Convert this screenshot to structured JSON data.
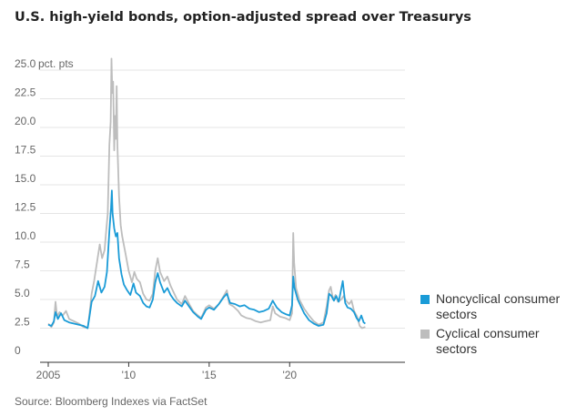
{
  "title": "U.S. high-yield bonds, option-adjusted spread over Treasurys",
  "source": "Source: Bloomberg Indexes via FactSet",
  "colors": {
    "noncyclical": "#1a9bd7",
    "cyclical": "#bdbdbd",
    "grid": "#e5e5e5",
    "axis": "#333333"
  },
  "chart_data": {
    "type": "line",
    "title": "U.S. high-yield bonds, option-adjusted spread over Treasurys",
    "unit_label": "pct. pts",
    "ylim": [
      0,
      25
    ],
    "xlim": [
      2005.0,
      2024.8
    ],
    "y_ticks": [
      {
        "value": 0,
        "label": "0"
      },
      {
        "value": 2.5,
        "label": "2.5"
      },
      {
        "value": 5,
        "label": "5.0"
      },
      {
        "value": 7.5,
        "label": "7.5"
      },
      {
        "value": 10,
        "label": "10.0"
      },
      {
        "value": 12.5,
        "label": "12.5"
      },
      {
        "value": 15,
        "label": "15.0"
      },
      {
        "value": 17.5,
        "label": "17.5"
      },
      {
        "value": 20,
        "label": "20.0"
      },
      {
        "value": 22.5,
        "label": "22.5"
      },
      {
        "value": 25,
        "label": "25.0"
      }
    ],
    "x_ticks": [
      {
        "value": 2005,
        "label": "2005"
      },
      {
        "value": 2010,
        "label": "'10"
      },
      {
        "value": 2015,
        "label": "'15"
      },
      {
        "value": 2020,
        "label": "'20"
      }
    ],
    "series": [
      {
        "name": "Cyclical consumer sectors",
        "legend_label": "Cyclical consumer sectors",
        "color": "#bdbdbd",
        "points": [
          [
            2005.0,
            2.9
          ],
          [
            2005.2,
            2.6
          ],
          [
            2005.35,
            3.0
          ],
          [
            2005.45,
            4.8
          ],
          [
            2005.55,
            3.5
          ],
          [
            2005.7,
            3.9
          ],
          [
            2005.9,
            3.6
          ],
          [
            2006.1,
            4.0
          ],
          [
            2006.3,
            3.3
          ],
          [
            2006.6,
            3.1
          ],
          [
            2006.9,
            2.9
          ],
          [
            2007.2,
            2.6
          ],
          [
            2007.45,
            2.5
          ],
          [
            2007.55,
            3.6
          ],
          [
            2007.7,
            5.5
          ],
          [
            2007.85,
            6.6
          ],
          [
            2008.0,
            8.0
          ],
          [
            2008.2,
            9.8
          ],
          [
            2008.35,
            8.6
          ],
          [
            2008.5,
            9.3
          ],
          [
            2008.6,
            11.0
          ],
          [
            2008.7,
            12.5
          ],
          [
            2008.8,
            18.5
          ],
          [
            2008.88,
            20.5
          ],
          [
            2008.93,
            26.0
          ],
          [
            2008.98,
            23.0
          ],
          [
            2009.03,
            24.0
          ],
          [
            2009.1,
            18.0
          ],
          [
            2009.15,
            21.0
          ],
          [
            2009.2,
            19.0
          ],
          [
            2009.25,
            23.6
          ],
          [
            2009.3,
            18.5
          ],
          [
            2009.4,
            14.0
          ],
          [
            2009.5,
            11.5
          ],
          [
            2009.6,
            10.5
          ],
          [
            2009.8,
            9.0
          ],
          [
            2010.0,
            7.5
          ],
          [
            2010.2,
            6.5
          ],
          [
            2010.35,
            7.4
          ],
          [
            2010.5,
            6.8
          ],
          [
            2010.7,
            6.5
          ],
          [
            2010.9,
            5.5
          ],
          [
            2011.1,
            5.0
          ],
          [
            2011.3,
            4.9
          ],
          [
            2011.5,
            5.5
          ],
          [
            2011.65,
            7.5
          ],
          [
            2011.8,
            8.6
          ],
          [
            2011.95,
            7.4
          ],
          [
            2012.2,
            6.6
          ],
          [
            2012.4,
            7.0
          ],
          [
            2012.6,
            6.2
          ],
          [
            2012.8,
            5.6
          ],
          [
            2013.0,
            5.0
          ],
          [
            2013.3,
            4.6
          ],
          [
            2013.5,
            5.3
          ],
          [
            2013.8,
            4.5
          ],
          [
            2014.0,
            4.0
          ],
          [
            2014.3,
            3.6
          ],
          [
            2014.5,
            3.4
          ],
          [
            2014.8,
            4.3
          ],
          [
            2015.0,
            4.5
          ],
          [
            2015.3,
            4.2
          ],
          [
            2015.6,
            4.6
          ],
          [
            2015.9,
            5.3
          ],
          [
            2016.1,
            5.8
          ],
          [
            2016.25,
            4.6
          ],
          [
            2016.5,
            4.4
          ],
          [
            2016.8,
            4.0
          ],
          [
            2017.0,
            3.6
          ],
          [
            2017.3,
            3.4
          ],
          [
            2017.6,
            3.3
          ],
          [
            2017.9,
            3.1
          ],
          [
            2018.2,
            3.0
          ],
          [
            2018.5,
            3.1
          ],
          [
            2018.8,
            3.2
          ],
          [
            2018.95,
            4.4
          ],
          [
            2019.1,
            3.8
          ],
          [
            2019.4,
            3.5
          ],
          [
            2019.7,
            3.4
          ],
          [
            2020.0,
            3.2
          ],
          [
            2020.15,
            3.8
          ],
          [
            2020.22,
            10.8
          ],
          [
            2020.28,
            8.2
          ],
          [
            2020.4,
            6.0
          ],
          [
            2020.6,
            5.0
          ],
          [
            2020.9,
            4.2
          ],
          [
            2021.2,
            3.6
          ],
          [
            2021.5,
            3.1
          ],
          [
            2021.8,
            2.8
          ],
          [
            2022.1,
            3.0
          ],
          [
            2022.3,
            4.4
          ],
          [
            2022.45,
            5.8
          ],
          [
            2022.55,
            6.1
          ],
          [
            2022.7,
            5.0
          ],
          [
            2022.85,
            5.4
          ],
          [
            2023.0,
            4.8
          ],
          [
            2023.2,
            5.0
          ],
          [
            2023.35,
            5.3
          ],
          [
            2023.5,
            4.9
          ],
          [
            2023.7,
            4.6
          ],
          [
            2023.85,
            4.9
          ],
          [
            2024.0,
            4.0
          ],
          [
            2024.2,
            3.5
          ],
          [
            2024.35,
            2.7
          ],
          [
            2024.5,
            2.5
          ],
          [
            2024.7,
            2.6
          ]
        ]
      },
      {
        "name": "Noncyclical consumer sectors",
        "legend_label": "Noncyclical consumer sectors",
        "color": "#1a9bd7",
        "points": [
          [
            2005.0,
            2.8
          ],
          [
            2005.2,
            2.7
          ],
          [
            2005.35,
            3.1
          ],
          [
            2005.45,
            3.9
          ],
          [
            2005.6,
            3.3
          ],
          [
            2005.8,
            3.8
          ],
          [
            2006.0,
            3.2
          ],
          [
            2006.3,
            3.0
          ],
          [
            2006.6,
            2.9
          ],
          [
            2006.9,
            2.8
          ],
          [
            2007.2,
            2.7
          ],
          [
            2007.45,
            2.5
          ],
          [
            2007.55,
            3.4
          ],
          [
            2007.7,
            4.8
          ],
          [
            2007.9,
            5.3
          ],
          [
            2008.1,
            6.6
          ],
          [
            2008.3,
            5.6
          ],
          [
            2008.5,
            6.1
          ],
          [
            2008.65,
            7.4
          ],
          [
            2008.8,
            11.0
          ],
          [
            2008.9,
            13.0
          ],
          [
            2008.95,
            14.5
          ],
          [
            2009.0,
            12.5
          ],
          [
            2009.1,
            11.2
          ],
          [
            2009.2,
            10.5
          ],
          [
            2009.3,
            10.8
          ],
          [
            2009.4,
            8.6
          ],
          [
            2009.55,
            7.2
          ],
          [
            2009.7,
            6.3
          ],
          [
            2009.9,
            5.8
          ],
          [
            2010.1,
            5.4
          ],
          [
            2010.3,
            6.4
          ],
          [
            2010.45,
            5.6
          ],
          [
            2010.7,
            5.3
          ],
          [
            2010.9,
            4.7
          ],
          [
            2011.1,
            4.4
          ],
          [
            2011.3,
            4.3
          ],
          [
            2011.5,
            5.0
          ],
          [
            2011.65,
            6.5
          ],
          [
            2011.8,
            7.3
          ],
          [
            2011.95,
            6.5
          ],
          [
            2012.2,
            5.6
          ],
          [
            2012.4,
            6.0
          ],
          [
            2012.6,
            5.4
          ],
          [
            2012.8,
            5.0
          ],
          [
            2013.0,
            4.7
          ],
          [
            2013.3,
            4.4
          ],
          [
            2013.5,
            4.9
          ],
          [
            2013.8,
            4.3
          ],
          [
            2014.0,
            3.9
          ],
          [
            2014.3,
            3.5
          ],
          [
            2014.5,
            3.3
          ],
          [
            2014.8,
            4.1
          ],
          [
            2015.0,
            4.3
          ],
          [
            2015.3,
            4.1
          ],
          [
            2015.6,
            4.6
          ],
          [
            2015.9,
            5.2
          ],
          [
            2016.1,
            5.5
          ],
          [
            2016.3,
            4.7
          ],
          [
            2016.6,
            4.6
          ],
          [
            2016.9,
            4.4
          ],
          [
            2017.2,
            4.5
          ],
          [
            2017.5,
            4.2
          ],
          [
            2017.8,
            4.1
          ],
          [
            2018.1,
            3.9
          ],
          [
            2018.4,
            4.0
          ],
          [
            2018.7,
            4.2
          ],
          [
            2018.95,
            4.9
          ],
          [
            2019.2,
            4.3
          ],
          [
            2019.5,
            3.9
          ],
          [
            2019.8,
            3.7
          ],
          [
            2020.0,
            3.6
          ],
          [
            2020.15,
            4.5
          ],
          [
            2020.22,
            7.0
          ],
          [
            2020.3,
            6.0
          ],
          [
            2020.5,
            5.0
          ],
          [
            2020.7,
            4.4
          ],
          [
            2020.9,
            3.8
          ],
          [
            2021.2,
            3.2
          ],
          [
            2021.5,
            2.9
          ],
          [
            2021.8,
            2.7
          ],
          [
            2022.1,
            2.8
          ],
          [
            2022.3,
            3.8
          ],
          [
            2022.45,
            5.5
          ],
          [
            2022.6,
            5.3
          ],
          [
            2022.75,
            4.9
          ],
          [
            2022.9,
            5.3
          ],
          [
            2023.05,
            4.8
          ],
          [
            2023.2,
            5.9
          ],
          [
            2023.3,
            6.6
          ],
          [
            2023.45,
            4.7
          ],
          [
            2023.6,
            4.3
          ],
          [
            2023.8,
            4.2
          ],
          [
            2024.0,
            3.9
          ],
          [
            2024.15,
            3.4
          ],
          [
            2024.3,
            3.1
          ],
          [
            2024.45,
            3.6
          ],
          [
            2024.6,
            3.0
          ],
          [
            2024.7,
            2.9
          ]
        ]
      }
    ]
  }
}
